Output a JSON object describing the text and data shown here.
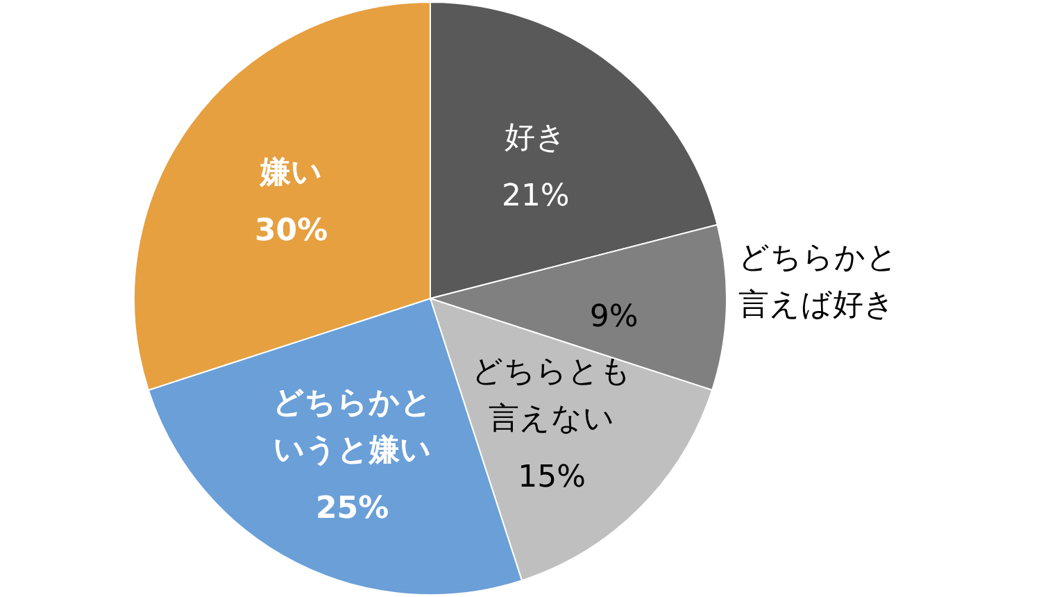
{
  "chart_data": {
    "type": "pie",
    "categories": [
      "好き",
      "どちらかと言えば好き",
      "どちらとも言えない",
      "どちらかというと嫌い",
      "嫌い"
    ],
    "values": [
      21,
      9,
      15,
      25,
      30
    ],
    "colors": [
      "#595959",
      "#808080",
      "#bfbfbf",
      "#6a9fd8",
      "#e6a040"
    ],
    "value_labels": [
      "21%",
      "9%",
      "15%",
      "25%",
      "30%"
    ],
    "legend": false
  }
}
